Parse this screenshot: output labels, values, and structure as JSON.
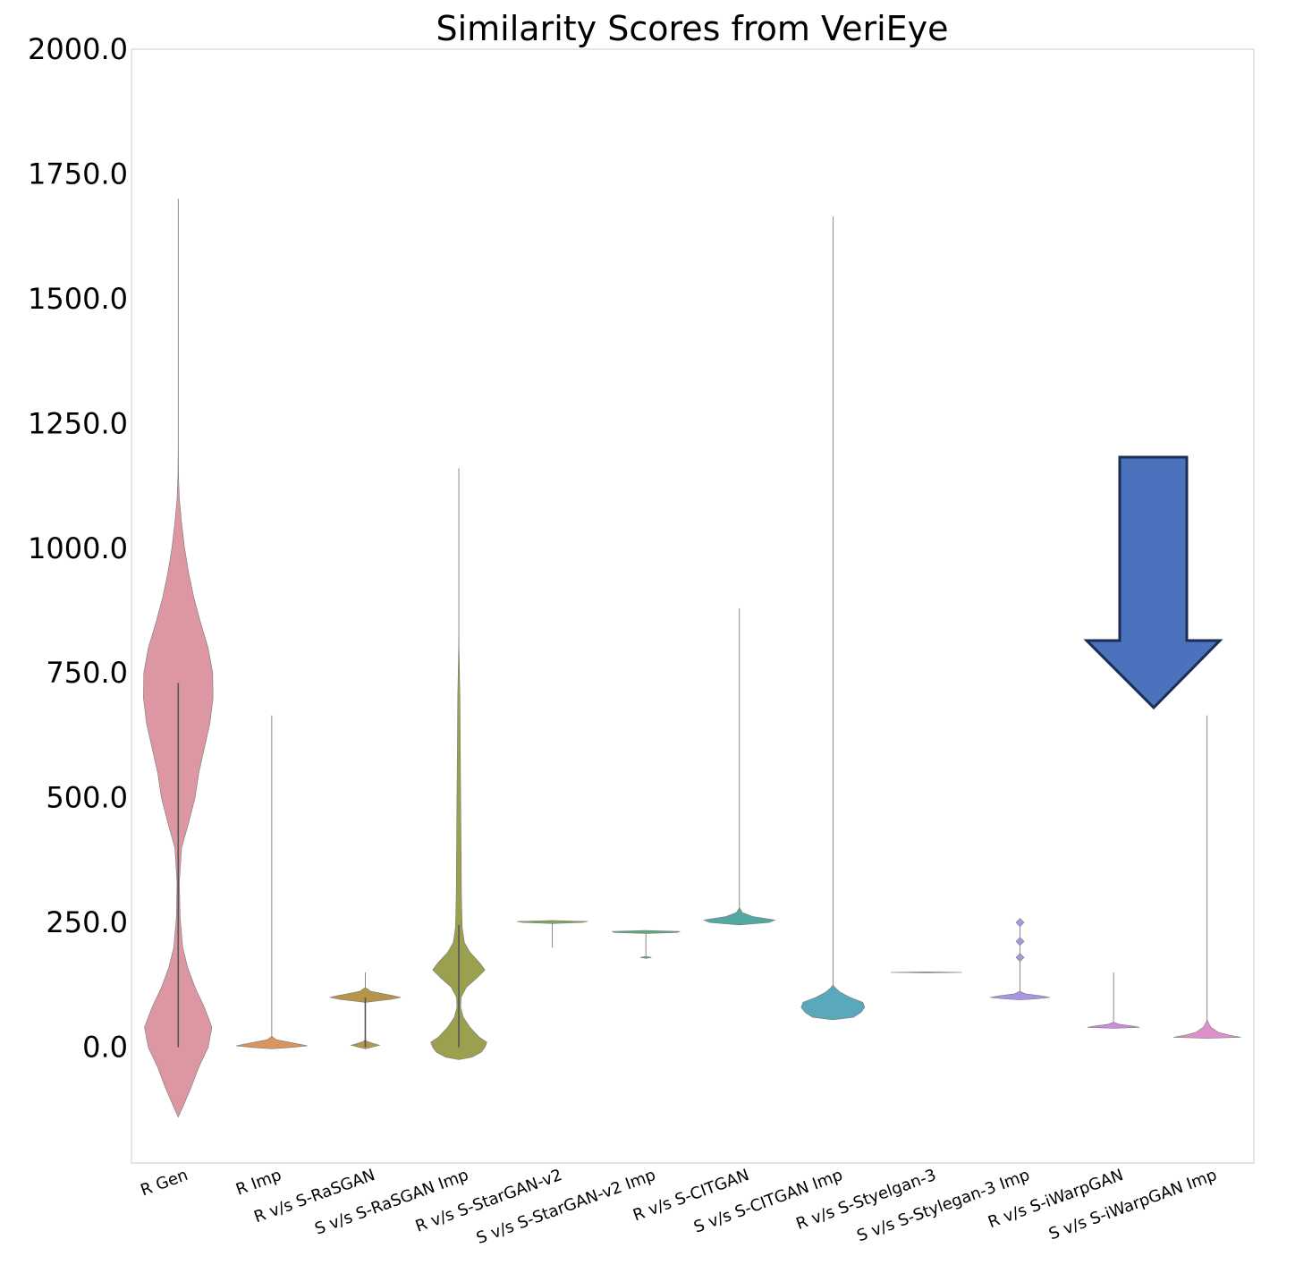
{
  "chart_data": {
    "type": "violin",
    "title": "Similarity Scores from VeriEye",
    "xlabel": "",
    "ylabel": "",
    "ylim": [
      -232,
      2000
    ],
    "yticks": [
      0,
      250,
      500,
      750,
      1000,
      1250,
      1500,
      1750,
      2000
    ],
    "ytick_labels": [
      "0.0",
      "250.0",
      "500.0",
      "750.0",
      "1000.0",
      "1250.0",
      "1500.0",
      "1750.0",
      "2000.0"
    ],
    "grid": false,
    "annotation": "Downward arrow pointing to S v/s S-iWarpGAN Imp",
    "categories": [
      "R Gen",
      "R Imp",
      "R v/s S-RaSGAN",
      "S v/s S-RaSGAN Imp",
      "R v/s S-StarGAN-v2",
      "S v/s S-StarGAN-v2 Imp",
      "R v/s S-CITGAN",
      "S v/s S-CITGAN Imp",
      "R v/s S-Styelgan-3",
      "S v/s S-Stylegan-3 Imp",
      "R v/s S-iWarpGAN",
      "S v/s S-iWarpGAN Imp"
    ],
    "series": [
      {
        "name": "R Gen",
        "color": "#dc97a2",
        "line": [
          0,
          1700
        ],
        "box": [
          0,
          730
        ],
        "profile": [
          [
            -140,
            0
          ],
          [
            -120,
            0.12
          ],
          [
            -80,
            0.35
          ],
          [
            -40,
            0.55
          ],
          [
            0,
            0.8
          ],
          [
            40,
            0.9
          ],
          [
            80,
            0.7
          ],
          [
            120,
            0.45
          ],
          [
            160,
            0.25
          ],
          [
            200,
            0.12
          ],
          [
            260,
            0.05
          ],
          [
            330,
            0.03
          ],
          [
            400,
            0.09
          ],
          [
            450,
            0.28
          ],
          [
            500,
            0.45
          ],
          [
            550,
            0.55
          ],
          [
            600,
            0.7
          ],
          [
            650,
            0.85
          ],
          [
            700,
            0.93
          ],
          [
            750,
            0.92
          ],
          [
            800,
            0.8
          ],
          [
            850,
            0.6
          ],
          [
            900,
            0.42
          ],
          [
            950,
            0.28
          ],
          [
            1000,
            0.17
          ],
          [
            1050,
            0.09
          ],
          [
            1100,
            0.03
          ],
          [
            1150,
            0.005
          ],
          [
            1200,
            0
          ]
        ]
      },
      {
        "name": "R Imp",
        "color": "#d9955e",
        "line": [
          0,
          665
        ],
        "box": null,
        "profile": [
          [
            -3,
            0
          ],
          [
            0,
            0.6
          ],
          [
            3,
            0.95
          ],
          [
            8,
            0.6
          ],
          [
            15,
            0.12
          ],
          [
            22,
            0
          ]
        ]
      },
      {
        "name": "R v/s S-RaSGAN",
        "color": "#b6944a",
        "line": [
          0,
          150
        ],
        "box": [
          0,
          100
        ],
        "profile": [
          [
            -3,
            0
          ],
          [
            0,
            0.17
          ],
          [
            4,
            0.38
          ],
          [
            8,
            0.2
          ],
          [
            12,
            0.04
          ],
          [
            16,
            0
          ],
          [
            90,
            0
          ],
          [
            96,
            0.7
          ],
          [
            100,
            0.95
          ],
          [
            104,
            0.7
          ],
          [
            112,
            0.15
          ],
          [
            120,
            0
          ]
        ]
      },
      {
        "name": "S v/s S-RaSGAN Imp",
        "color": "#9aa04e",
        "line": [
          0,
          1160
        ],
        "box": [
          0,
          245
        ],
        "profile": [
          [
            -25,
            0
          ],
          [
            -20,
            0.35
          ],
          [
            -10,
            0.6
          ],
          [
            0,
            0.7
          ],
          [
            10,
            0.75
          ],
          [
            20,
            0.55
          ],
          [
            40,
            0.3
          ],
          [
            60,
            0.12
          ],
          [
            80,
            0.05
          ],
          [
            100,
            0.06
          ],
          [
            120,
            0.2
          ],
          [
            140,
            0.5
          ],
          [
            155,
            0.7
          ],
          [
            170,
            0.55
          ],
          [
            190,
            0.3
          ],
          [
            210,
            0.15
          ],
          [
            240,
            0.09
          ],
          [
            300,
            0.07
          ],
          [
            400,
            0.06
          ],
          [
            500,
            0.05
          ],
          [
            600,
            0.04
          ],
          [
            700,
            0.03
          ],
          [
            780,
            0.01
          ],
          [
            820,
            0
          ]
        ]
      },
      {
        "name": "R v/s S-StarGAN-v2",
        "color": "#7fa85a",
        "line": [
          200,
          252
        ],
        "box": null,
        "profile": [
          [
            248,
            0
          ],
          [
            250,
            0.8
          ],
          [
            252,
            0.95
          ],
          [
            254,
            0
          ]
        ]
      },
      {
        "name": "S v/s S-StarGAN-v2 Imp",
        "color": "#5aab7e",
        "line": [
          180,
          232
        ],
        "box": null,
        "profile": [
          [
            178,
            0
          ],
          [
            180,
            0.15
          ],
          [
            182,
            0
          ],
          [
            228,
            0
          ],
          [
            230,
            0.85
          ],
          [
            232,
            0.9
          ],
          [
            234,
            0
          ]
        ]
      },
      {
        "name": "R v/s S-CITGAN",
        "color": "#52a9a3",
        "line": [
          250,
          880
        ],
        "box": null,
        "profile": [
          [
            245,
            0
          ],
          [
            250,
            0.8
          ],
          [
            255,
            0.95
          ],
          [
            262,
            0.35
          ],
          [
            270,
            0.08
          ],
          [
            280,
            0
          ]
        ]
      },
      {
        "name": "S v/s S-CITGAN Imp",
        "color": "#5aa8bc",
        "line": [
          80,
          1665
        ],
        "box": null,
        "profile": [
          [
            55,
            0
          ],
          [
            60,
            0.55
          ],
          [
            70,
            0.75
          ],
          [
            80,
            0.85
          ],
          [
            90,
            0.8
          ],
          [
            100,
            0.45
          ],
          [
            110,
            0.2
          ],
          [
            120,
            0.05
          ],
          [
            125,
            0
          ]
        ]
      },
      {
        "name": "R v/s S-Styelgan-3",
        "color": "#6f93c0",
        "line": [
          150,
          150
        ],
        "box": null,
        "profile": [
          [
            149,
            0
          ],
          [
            150,
            0.95
          ],
          [
            151,
            0
          ]
        ]
      },
      {
        "name": "S v/s S-Stylegan-3 Imp",
        "color": "#a896e2",
        "line": [
          100,
          252
        ],
        "box": null,
        "outliers": [
          180,
          212,
          250
        ],
        "profile": [
          [
            95,
            0
          ],
          [
            97,
            0.45
          ],
          [
            100,
            0.8
          ],
          [
            103,
            0.55
          ],
          [
            107,
            0.15
          ],
          [
            112,
            0
          ]
        ]
      },
      {
        "name": "R v/s S-iWarpGAN",
        "color": "#c98de0",
        "line": [
          40,
          150
        ],
        "box": null,
        "profile": [
          [
            38,
            0
          ],
          [
            40,
            0.7
          ],
          [
            42,
            0.55
          ],
          [
            46,
            0.15
          ],
          [
            50,
            0
          ]
        ]
      },
      {
        "name": "S v/s S-iWarpGAN Imp",
        "color": "#e090c8",
        "line": [
          20,
          665
        ],
        "box": null,
        "profile": [
          [
            18,
            0
          ],
          [
            20,
            0.9
          ],
          [
            24,
            0.6
          ],
          [
            30,
            0.3
          ],
          [
            40,
            0.1
          ],
          [
            50,
            0.03
          ],
          [
            55,
            0
          ]
        ]
      }
    ]
  }
}
